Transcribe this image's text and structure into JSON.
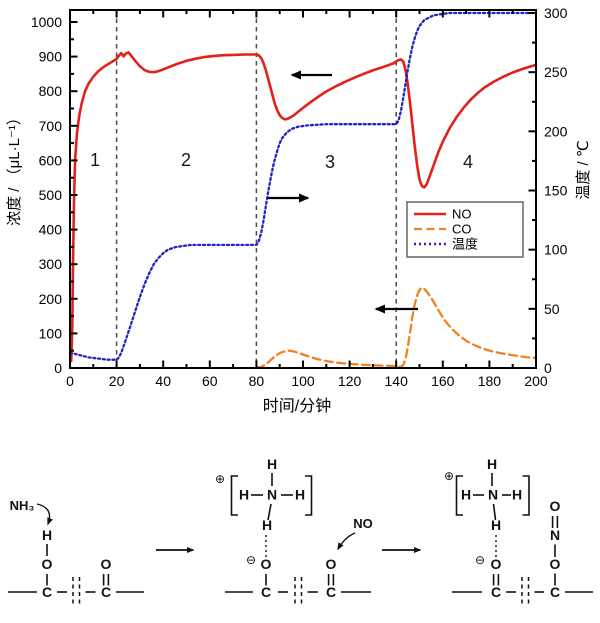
{
  "figure": {
    "x_label": "时间/分钟",
    "y_left_label": "浓度 / （μL·L⁻¹）",
    "y_right_label": "温度 / ℃",
    "x_ticks": [
      "0",
      "20",
      "40",
      "60",
      "80",
      "100",
      "120",
      "140",
      "160",
      "180",
      "200"
    ],
    "y_left_ticks": [
      "0",
      "100",
      "200",
      "300",
      "400",
      "500",
      "600",
      "700",
      "800",
      "900",
      "1000"
    ],
    "y_right_ticks": [
      "0",
      "50",
      "100",
      "150",
      "200",
      "250",
      "300"
    ],
    "regions": [
      "1",
      "2",
      "3",
      "4"
    ],
    "legend": {
      "items": [
        {
          "label": "NO"
        },
        {
          "label": "CO"
        },
        {
          "label": "温度"
        }
      ]
    }
  },
  "chart_data": {
    "type": "line",
    "title": "",
    "xlabel": "时间/分钟",
    "ylabel_left": "浓度 / （μL·L⁻¹）",
    "ylabel_right": "温度 / ℃",
    "xlim": [
      0,
      200
    ],
    "ylim_left": [
      0,
      1000
    ],
    "ylim_right": [
      0,
      300
    ],
    "x_major_tick": 20,
    "y_left_major_tick": 100,
    "y_right_major_tick": 50,
    "grid": false,
    "legend_position": "right-middle",
    "phase_boundaries": [
      20,
      80,
      140
    ],
    "region_labels": [
      "1",
      "2",
      "3",
      "4"
    ],
    "colors": {
      "no": "#e3201a",
      "co": "#ef8222",
      "temp": "#2323c4",
      "phase_line": "#4a4a4a"
    },
    "series": [
      {
        "name": "NO",
        "axis": "left",
        "units": "μL·L⁻¹",
        "style": "solid",
        "color": "#e3201a",
        "points": [
          [
            0.5,
            20
          ],
          [
            1,
            120
          ],
          [
            1.3,
            300
          ],
          [
            1.7,
            480
          ],
          [
            2.2,
            600
          ],
          [
            3,
            680
          ],
          [
            4,
            730
          ],
          [
            5,
            765
          ],
          [
            6.5,
            800
          ],
          [
            8,
            822
          ],
          [
            10,
            842
          ],
          [
            12,
            857
          ],
          [
            14,
            868
          ],
          [
            16,
            877
          ],
          [
            18,
            885
          ],
          [
            20,
            893
          ],
          [
            21,
            903
          ],
          [
            22,
            910
          ],
          [
            23,
            901
          ],
          [
            24,
            909
          ],
          [
            25,
            912
          ],
          [
            26,
            905
          ],
          [
            28,
            888
          ],
          [
            30,
            872
          ],
          [
            32,
            861
          ],
          [
            34,
            856
          ],
          [
            36,
            855
          ],
          [
            38,
            858
          ],
          [
            40,
            863
          ],
          [
            43,
            871
          ],
          [
            46,
            879
          ],
          [
            50,
            888
          ],
          [
            54,
            894
          ],
          [
            58,
            899
          ],
          [
            62,
            902
          ],
          [
            66,
            904
          ],
          [
            70,
            905
          ],
          [
            75,
            906
          ],
          [
            80,
            906
          ],
          [
            81,
            904
          ],
          [
            82,
            896
          ],
          [
            83,
            882
          ],
          [
            84,
            862
          ],
          [
            85,
            838
          ],
          [
            86,
            812
          ],
          [
            87,
            786
          ],
          [
            88,
            762
          ],
          [
            89,
            744
          ],
          [
            90,
            731
          ],
          [
            91,
            723
          ],
          [
            92,
            719
          ],
          [
            93,
            719
          ],
          [
            94,
            722
          ],
          [
            96,
            730
          ],
          [
            98,
            741
          ],
          [
            101,
            757
          ],
          [
            104,
            772
          ],
          [
            107,
            786
          ],
          [
            110,
            799
          ],
          [
            114,
            814
          ],
          [
            118,
            827
          ],
          [
            122,
            839
          ],
          [
            126,
            850
          ],
          [
            130,
            860
          ],
          [
            134,
            869
          ],
          [
            137,
            876
          ],
          [
            139,
            881
          ],
          [
            140,
            886
          ],
          [
            141,
            890
          ],
          [
            142,
            892
          ],
          [
            143,
            886
          ],
          [
            144,
            862
          ],
          [
            145,
            820
          ],
          [
            146,
            763
          ],
          [
            147,
            700
          ],
          [
            148,
            640
          ],
          [
            149,
            585
          ],
          [
            150,
            545
          ],
          [
            151,
            526
          ],
          [
            152,
            522
          ],
          [
            153,
            530
          ],
          [
            154,
            547
          ],
          [
            156,
            585
          ],
          [
            158,
            622
          ],
          [
            160,
            654
          ],
          [
            163,
            694
          ],
          [
            166,
            726
          ],
          [
            169,
            753
          ],
          [
            172,
            776
          ],
          [
            175,
            795
          ],
          [
            178,
            811
          ],
          [
            182,
            828
          ],
          [
            186,
            842
          ],
          [
            190,
            854
          ],
          [
            194,
            864
          ],
          [
            198,
            872
          ],
          [
            200,
            876
          ]
        ]
      },
      {
        "name": "CO",
        "axis": "left",
        "units": "μL·L⁻¹",
        "style": "dashed",
        "color": "#ef8222",
        "points": [
          [
            80,
            2
          ],
          [
            82,
            3
          ],
          [
            84,
            10
          ],
          [
            86,
            22
          ],
          [
            88,
            34
          ],
          [
            90,
            43
          ],
          [
            92,
            48
          ],
          [
            94,
            50
          ],
          [
            96,
            48
          ],
          [
            98,
            44
          ],
          [
            100,
            39
          ],
          [
            103,
            32
          ],
          [
            106,
            26
          ],
          [
            110,
            20
          ],
          [
            114,
            16
          ],
          [
            118,
            13
          ],
          [
            122,
            11
          ],
          [
            126,
            9
          ],
          [
            130,
            8
          ],
          [
            134,
            7
          ],
          [
            138,
            6
          ],
          [
            140,
            5
          ],
          [
            142,
            4
          ],
          [
            143,
            8
          ],
          [
            144,
            25
          ],
          [
            145,
            60
          ],
          [
            146,
            105
          ],
          [
            147,
            150
          ],
          [
            148,
            185
          ],
          [
            149,
            210
          ],
          [
            150,
            226
          ],
          [
            151,
            232
          ],
          [
            152,
            229
          ],
          [
            153,
            222
          ],
          [
            155,
            203
          ],
          [
            157,
            180
          ],
          [
            159,
            157
          ],
          [
            161,
            136
          ],
          [
            164,
            112
          ],
          [
            167,
            94
          ],
          [
            170,
            79
          ],
          [
            173,
            68
          ],
          [
            176,
            59
          ],
          [
            180,
            50
          ],
          [
            184,
            44
          ],
          [
            188,
            39
          ],
          [
            192,
            35
          ],
          [
            196,
            31
          ],
          [
            200,
            29
          ]
        ]
      },
      {
        "name": "温度",
        "axis": "right",
        "units": "℃",
        "style": "dotted",
        "color": "#2323c4",
        "points": [
          [
            0,
            13
          ],
          [
            4,
            11
          ],
          [
            8,
            9
          ],
          [
            12,
            8
          ],
          [
            16,
            7
          ],
          [
            20,
            7
          ],
          [
            21,
            9
          ],
          [
            22,
            13
          ],
          [
            24,
            24
          ],
          [
            26,
            36
          ],
          [
            28,
            48
          ],
          [
            30,
            60
          ],
          [
            32,
            71
          ],
          [
            34,
            80
          ],
          [
            36,
            88
          ],
          [
            38,
            93
          ],
          [
            40,
            97
          ],
          [
            42,
            100
          ],
          [
            45,
            102
          ],
          [
            48,
            103
          ],
          [
            52,
            104
          ],
          [
            60,
            104
          ],
          [
            70,
            104
          ],
          [
            80,
            104
          ],
          [
            81,
            107
          ],
          [
            82,
            114
          ],
          [
            83,
            124
          ],
          [
            84,
            136
          ],
          [
            85,
            148
          ],
          [
            86,
            159
          ],
          [
            87,
            169
          ],
          [
            88,
            177
          ],
          [
            89,
            184
          ],
          [
            90,
            190
          ],
          [
            91,
            194
          ],
          [
            93,
            199
          ],
          [
            95,
            202
          ],
          [
            98,
            204
          ],
          [
            102,
            205
          ],
          [
            110,
            206
          ],
          [
            120,
            206
          ],
          [
            130,
            206
          ],
          [
            140,
            206
          ],
          [
            141,
            209
          ],
          [
            142,
            217
          ],
          [
            143,
            228
          ],
          [
            144,
            240
          ],
          [
            145,
            252
          ],
          [
            146,
            263
          ],
          [
            147,
            272
          ],
          [
            148,
            279
          ],
          [
            149,
            285
          ],
          [
            150,
            289
          ],
          [
            152,
            294
          ],
          [
            154,
            296
          ],
          [
            156,
            298
          ],
          [
            159,
            299
          ],
          [
            163,
            300
          ],
          [
            170,
            300
          ],
          [
            180,
            300
          ],
          [
            190,
            300
          ],
          [
            200,
            300
          ]
        ]
      }
    ]
  },
  "mechanism": {
    "atoms": {
      "nh3": "NH₃",
      "no": "NO",
      "h": "H",
      "o": "O",
      "c": "C",
      "n": "N",
      "plus": "⊕",
      "minus": "⊖"
    }
  }
}
